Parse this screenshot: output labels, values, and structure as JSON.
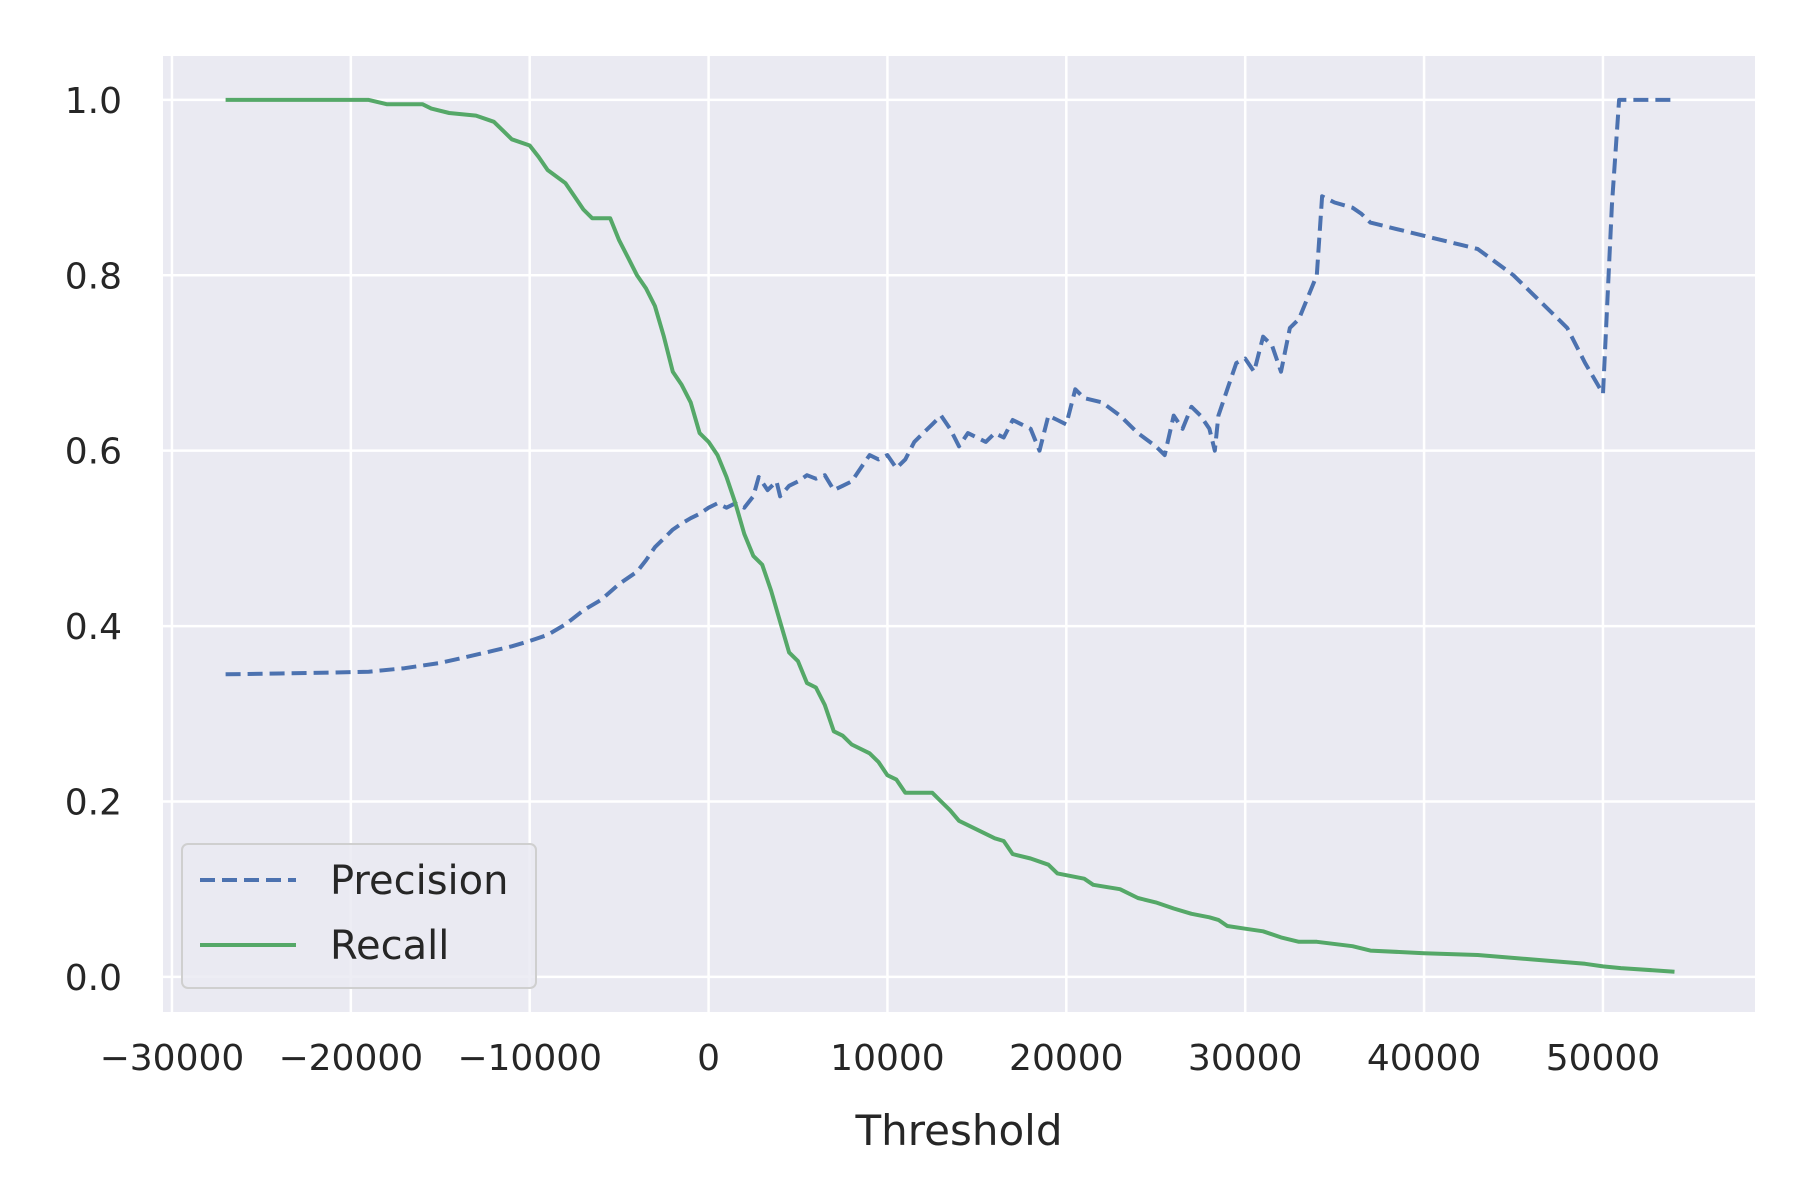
{
  "chart_data": {
    "type": "line",
    "title": "",
    "xlabel": "Threshold",
    "ylabel": "",
    "xlim": [
      -30500,
      58500
    ],
    "ylim": [
      -0.04,
      1.05
    ],
    "grid": true,
    "legend_position": "lower-left",
    "x_ticks": [
      -30000,
      -20000,
      -10000,
      0,
      10000,
      20000,
      30000,
      40000,
      50000
    ],
    "x_tick_labels": [
      "−30000",
      "−20000",
      "−10000",
      "0",
      "10000",
      "20000",
      "30000",
      "40000",
      "50000"
    ],
    "y_ticks": [
      0.0,
      0.2,
      0.4,
      0.6,
      0.8,
      1.0
    ],
    "y_tick_labels": [
      "0.0",
      "0.2",
      "0.4",
      "0.6",
      "0.8",
      "1.0"
    ],
    "colors": {
      "background": "#eaeaf2",
      "grid": "#ffffff",
      "precision": "#4c72b0",
      "recall": "#55a868"
    },
    "series": [
      {
        "name": "Precision",
        "style": "dashed",
        "color": "#4c72b0",
        "points": [
          [
            -27000,
            0.345
          ],
          [
            -24000,
            0.346
          ],
          [
            -21000,
            0.347
          ],
          [
            -19000,
            0.348
          ],
          [
            -17000,
            0.352
          ],
          [
            -15000,
            0.358
          ],
          [
            -13500,
            0.365
          ],
          [
            -12000,
            0.372
          ],
          [
            -11000,
            0.377
          ],
          [
            -10000,
            0.383
          ],
          [
            -9000,
            0.39
          ],
          [
            -8000,
            0.402
          ],
          [
            -7000,
            0.418
          ],
          [
            -6000,
            0.43
          ],
          [
            -5000,
            0.448
          ],
          [
            -4000,
            0.462
          ],
          [
            -3500,
            0.475
          ],
          [
            -3000,
            0.49
          ],
          [
            -2500,
            0.5
          ],
          [
            -2000,
            0.51
          ],
          [
            -1500,
            0.517
          ],
          [
            -1000,
            0.523
          ],
          [
            -500,
            0.528
          ],
          [
            0,
            0.535
          ],
          [
            500,
            0.54
          ],
          [
            1000,
            0.535
          ],
          [
            1500,
            0.54
          ],
          [
            2000,
            0.535
          ],
          [
            2500,
            0.548
          ],
          [
            2800,
            0.57
          ],
          [
            3300,
            0.555
          ],
          [
            3800,
            0.565
          ],
          [
            4000,
            0.548
          ],
          [
            4500,
            0.56
          ],
          [
            5000,
            0.565
          ],
          [
            5500,
            0.572
          ],
          [
            6000,
            0.568
          ],
          [
            6500,
            0.572
          ],
          [
            7000,
            0.555
          ],
          [
            7500,
            0.56
          ],
          [
            8000,
            0.565
          ],
          [
            8500,
            0.58
          ],
          [
            9000,
            0.595
          ],
          [
            9500,
            0.59
          ],
          [
            10000,
            0.595
          ],
          [
            10500,
            0.58
          ],
          [
            11000,
            0.59
          ],
          [
            11500,
            0.61
          ],
          [
            12000,
            0.62
          ],
          [
            12500,
            0.63
          ],
          [
            13000,
            0.64
          ],
          [
            13500,
            0.625
          ],
          [
            14000,
            0.605
          ],
          [
            14500,
            0.62
          ],
          [
            15000,
            0.615
          ],
          [
            15500,
            0.61
          ],
          [
            16000,
            0.62
          ],
          [
            16500,
            0.615
          ],
          [
            17000,
            0.635
          ],
          [
            17500,
            0.63
          ],
          [
            18000,
            0.625
          ],
          [
            18500,
            0.6
          ],
          [
            19000,
            0.64
          ],
          [
            19500,
            0.635
          ],
          [
            20000,
            0.63
          ],
          [
            20500,
            0.67
          ],
          [
            21000,
            0.66
          ],
          [
            22000,
            0.655
          ],
          [
            23000,
            0.64
          ],
          [
            24000,
            0.62
          ],
          [
            25000,
            0.605
          ],
          [
            25500,
            0.595
          ],
          [
            26000,
            0.64
          ],
          [
            26500,
            0.625
          ],
          [
            27000,
            0.65
          ],
          [
            27500,
            0.64
          ],
          [
            28000,
            0.625
          ],
          [
            28300,
            0.6
          ],
          [
            28500,
            0.64
          ],
          [
            29000,
            0.67
          ],
          [
            29500,
            0.7
          ],
          [
            30000,
            0.705
          ],
          [
            30500,
            0.69
          ],
          [
            31000,
            0.73
          ],
          [
            31500,
            0.72
          ],
          [
            32000,
            0.69
          ],
          [
            32500,
            0.74
          ],
          [
            33000,
            0.75
          ],
          [
            34000,
            0.8
          ],
          [
            34300,
            0.89
          ],
          [
            35000,
            0.883
          ],
          [
            36000,
            0.877
          ],
          [
            36500,
            0.87
          ],
          [
            37000,
            0.86
          ],
          [
            38000,
            0.855
          ],
          [
            40000,
            0.845
          ],
          [
            42000,
            0.835
          ],
          [
            43000,
            0.83
          ],
          [
            44000,
            0.815
          ],
          [
            45000,
            0.8
          ],
          [
            46000,
            0.78
          ],
          [
            47000,
            0.76
          ],
          [
            48000,
            0.74
          ],
          [
            49000,
            0.7
          ],
          [
            50000,
            0.665
          ],
          [
            50500,
            0.88
          ],
          [
            50900,
            1.0
          ],
          [
            54000,
            1.0
          ]
        ]
      },
      {
        "name": "Recall",
        "style": "solid",
        "color": "#55a868",
        "points": [
          [
            -27000,
            1.0
          ],
          [
            -19000,
            1.0
          ],
          [
            -18000,
            0.995
          ],
          [
            -16000,
            0.995
          ],
          [
            -15500,
            0.99
          ],
          [
            -14500,
            0.985
          ],
          [
            -13000,
            0.982
          ],
          [
            -12000,
            0.975
          ],
          [
            -11500,
            0.965
          ],
          [
            -11000,
            0.955
          ],
          [
            -10000,
            0.948
          ],
          [
            -9500,
            0.935
          ],
          [
            -9000,
            0.92
          ],
          [
            -8000,
            0.905
          ],
          [
            -7500,
            0.89
          ],
          [
            -7000,
            0.875
          ],
          [
            -6500,
            0.865
          ],
          [
            -5500,
            0.865
          ],
          [
            -5000,
            0.84
          ],
          [
            -4500,
            0.82
          ],
          [
            -4000,
            0.8
          ],
          [
            -3500,
            0.785
          ],
          [
            -3000,
            0.765
          ],
          [
            -2500,
            0.73
          ],
          [
            -2000,
            0.69
          ],
          [
            -1500,
            0.675
          ],
          [
            -1000,
            0.655
          ],
          [
            -500,
            0.62
          ],
          [
            0,
            0.61
          ],
          [
            500,
            0.595
          ],
          [
            1000,
            0.57
          ],
          [
            1500,
            0.54
          ],
          [
            2000,
            0.505
          ],
          [
            2500,
            0.48
          ],
          [
            3000,
            0.47
          ],
          [
            3500,
            0.44
          ],
          [
            4000,
            0.405
          ],
          [
            4500,
            0.37
          ],
          [
            5000,
            0.36
          ],
          [
            5500,
            0.335
          ],
          [
            6000,
            0.33
          ],
          [
            6500,
            0.31
          ],
          [
            7000,
            0.28
          ],
          [
            7500,
            0.275
          ],
          [
            8000,
            0.265
          ],
          [
            9000,
            0.255
          ],
          [
            9500,
            0.245
          ],
          [
            10000,
            0.23
          ],
          [
            10500,
            0.225
          ],
          [
            11000,
            0.21
          ],
          [
            12500,
            0.21
          ],
          [
            13000,
            0.2
          ],
          [
            13500,
            0.19
          ],
          [
            14000,
            0.178
          ],
          [
            15000,
            0.168
          ],
          [
            16000,
            0.158
          ],
          [
            16500,
            0.155
          ],
          [
            17000,
            0.14
          ],
          [
            18000,
            0.135
          ],
          [
            19000,
            0.128
          ],
          [
            19500,
            0.118
          ],
          [
            21000,
            0.112
          ],
          [
            21500,
            0.105
          ],
          [
            23000,
            0.1
          ],
          [
            24000,
            0.09
          ],
          [
            25000,
            0.085
          ],
          [
            26000,
            0.078
          ],
          [
            27000,
            0.072
          ],
          [
            28000,
            0.068
          ],
          [
            28500,
            0.065
          ],
          [
            29000,
            0.058
          ],
          [
            30000,
            0.055
          ],
          [
            31000,
            0.052
          ],
          [
            32000,
            0.045
          ],
          [
            33000,
            0.04
          ],
          [
            34000,
            0.04
          ],
          [
            36000,
            0.035
          ],
          [
            37000,
            0.03
          ],
          [
            40000,
            0.027
          ],
          [
            43000,
            0.025
          ],
          [
            46000,
            0.02
          ],
          [
            49000,
            0.015
          ],
          [
            50000,
            0.012
          ],
          [
            51000,
            0.01
          ],
          [
            54000,
            0.006
          ]
        ]
      }
    ]
  }
}
